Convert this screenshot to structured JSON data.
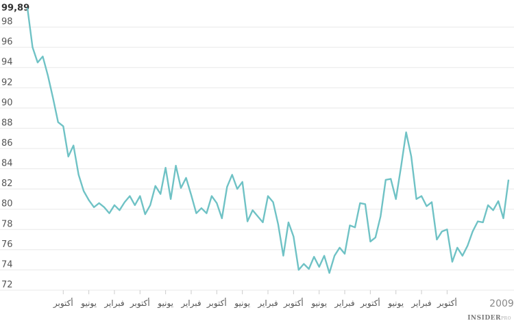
{
  "chart_data": {
    "type": "line",
    "title": "",
    "xlabel": "",
    "ylabel": "",
    "ylim": [
      72,
      100
    ],
    "yticks": [
      72,
      74,
      76,
      78,
      80,
      82,
      84,
      86,
      88,
      90,
      92,
      94,
      96,
      98
    ],
    "top_label": "99,89",
    "xticks": [
      {
        "label": "أكتوبر",
        "i": 7
      },
      {
        "label": "يونيو",
        "i": 12
      },
      {
        "label": "فبراير",
        "i": 17
      },
      {
        "label": "أكتوبر",
        "i": 22
      },
      {
        "label": "يونيو",
        "i": 27
      },
      {
        "label": "فبراير",
        "i": 32
      },
      {
        "label": "أكتوبر",
        "i": 37
      },
      {
        "label": "يونيو",
        "i": 42
      },
      {
        "label": "فبراير",
        "i": 47
      },
      {
        "label": "أكتوبر",
        "i": 52
      },
      {
        "label": "يونيو",
        "i": 57
      },
      {
        "label": "فبراير",
        "i": 62
      },
      {
        "label": "أكتوبر",
        "i": 67
      },
      {
        "label": "يونيو",
        "i": 72
      },
      {
        "label": "فبراير",
        "i": 77
      },
      {
        "label": "أكتوبر",
        "i": 82
      }
    ],
    "year_label": "2009",
    "series": [
      {
        "color": "#6fc2c5",
        "values": [
          99.89,
          96.0,
          94.5,
          95.1,
          93.2,
          91.0,
          88.6,
          88.2,
          85.2,
          86.3,
          83.4,
          81.8,
          80.9,
          80.2,
          80.6,
          80.2,
          79.6,
          80.4,
          79.9,
          80.7,
          81.3,
          80.4,
          81.3,
          79.5,
          80.4,
          82.3,
          81.5,
          84.1,
          81.0,
          84.3,
          82.1,
          83.1,
          81.4,
          79.6,
          80.1,
          79.6,
          81.3,
          80.6,
          79.1,
          82.2,
          83.4,
          82.0,
          82.7,
          78.8,
          79.9,
          79.3,
          78.7,
          81.3,
          80.7,
          78.5,
          75.4,
          78.7,
          77.3,
          74.0,
          74.6,
          74.1,
          75.3,
          74.3,
          75.4,
          73.7,
          75.4,
          76.2,
          75.6,
          78.4,
          78.2,
          80.6,
          80.5,
          76.8,
          77.2,
          79.3,
          82.9,
          83.0,
          81.0,
          84.2,
          87.6,
          85.2,
          81.0,
          81.3,
          80.3,
          80.7,
          77.0,
          77.8,
          78.0,
          74.8,
          76.2,
          75.4,
          76.4,
          77.8,
          78.8,
          78.7,
          80.4,
          79.9,
          80.8,
          79.1,
          82.9
        ]
      }
    ]
  },
  "brand": {
    "name": "INSIDER",
    "suffix": "PRO"
  }
}
